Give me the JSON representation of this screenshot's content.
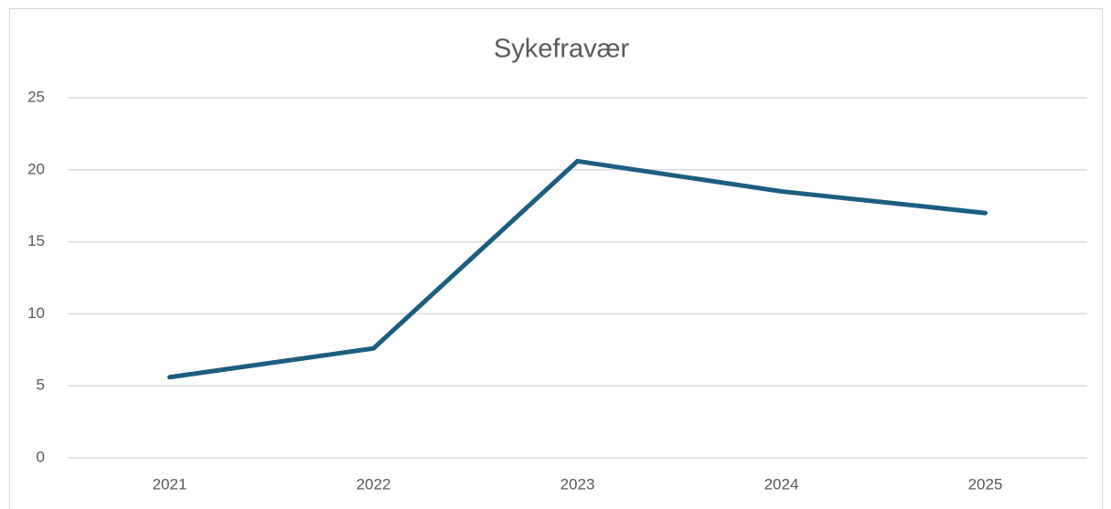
{
  "chart_data": {
    "type": "line",
    "title": "Sykefravær",
    "categories": [
      "2021",
      "2022",
      "2023",
      "2024",
      "2025"
    ],
    "series": [
      {
        "name": "Sykefravær",
        "color": "#1b5e80",
        "values": [
          5.6,
          7.6,
          20.6,
          18.5,
          17.0
        ]
      }
    ],
    "ylim": [
      0,
      25
    ],
    "yticks": [
      0,
      5,
      10,
      15,
      20,
      25
    ],
    "grid": true,
    "legend": false
  }
}
